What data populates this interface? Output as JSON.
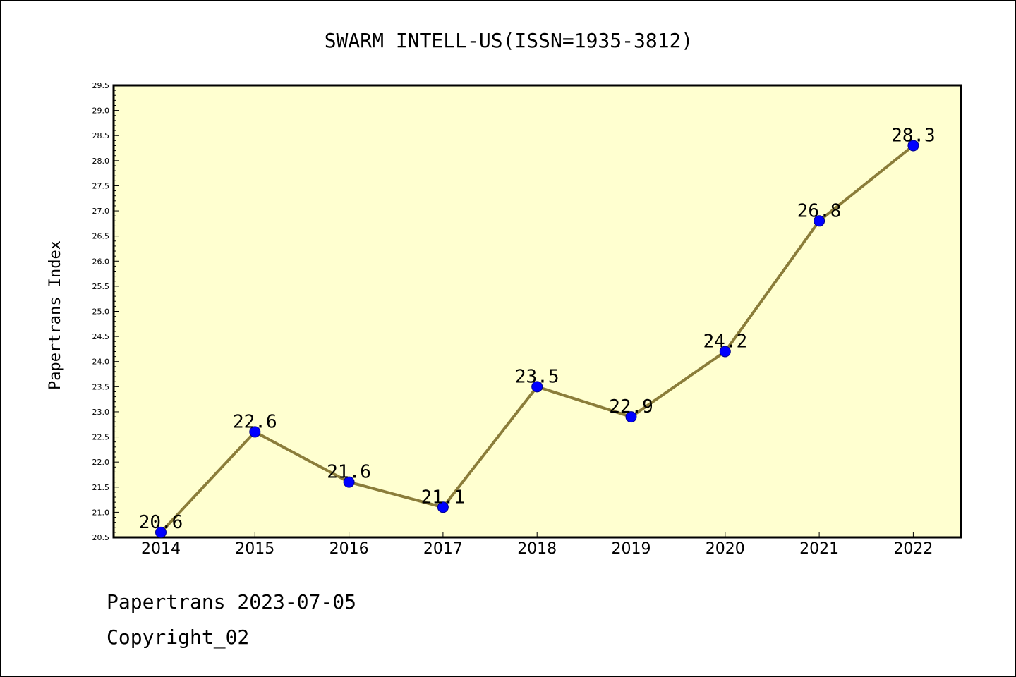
{
  "chart_data": {
    "type": "line",
    "title": "SWARM INTELL-US(ISSN=1935-3812)",
    "ylabel": "Papertrans Index",
    "xlabel": "",
    "categories": [
      "2014",
      "2015",
      "2016",
      "2017",
      "2018",
      "2019",
      "2020",
      "2021",
      "2022"
    ],
    "series": [
      {
        "values": [
          20.6,
          22.6,
          21.6,
          21.1,
          23.5,
          22.9,
          24.2,
          26.8,
          28.3
        ],
        "data_labels": [
          "20.6",
          "22.6",
          "21.6",
          "21.1",
          "23.5",
          "22.9",
          "24.2",
          "26.8",
          "28.3"
        ]
      }
    ],
    "ylim": [
      20.5,
      29.5
    ],
    "yticks": [
      "20.5",
      "21.0",
      "21.5",
      "22.0",
      "22.5",
      "23.0",
      "23.5",
      "24.0",
      "24.5",
      "25.0",
      "25.5",
      "26.0",
      "26.5",
      "27.0",
      "27.5",
      "28.0",
      "28.5",
      "29.0",
      "29.5"
    ],
    "grid": false,
    "legend": "none",
    "colors": {
      "plot_background": "#ffffd0",
      "line": "#8b7d3a",
      "marker": "#0000ff"
    }
  },
  "footer": {
    "date_line": "Papertrans 2023-07-05",
    "copyright": "Copyright_02"
  }
}
